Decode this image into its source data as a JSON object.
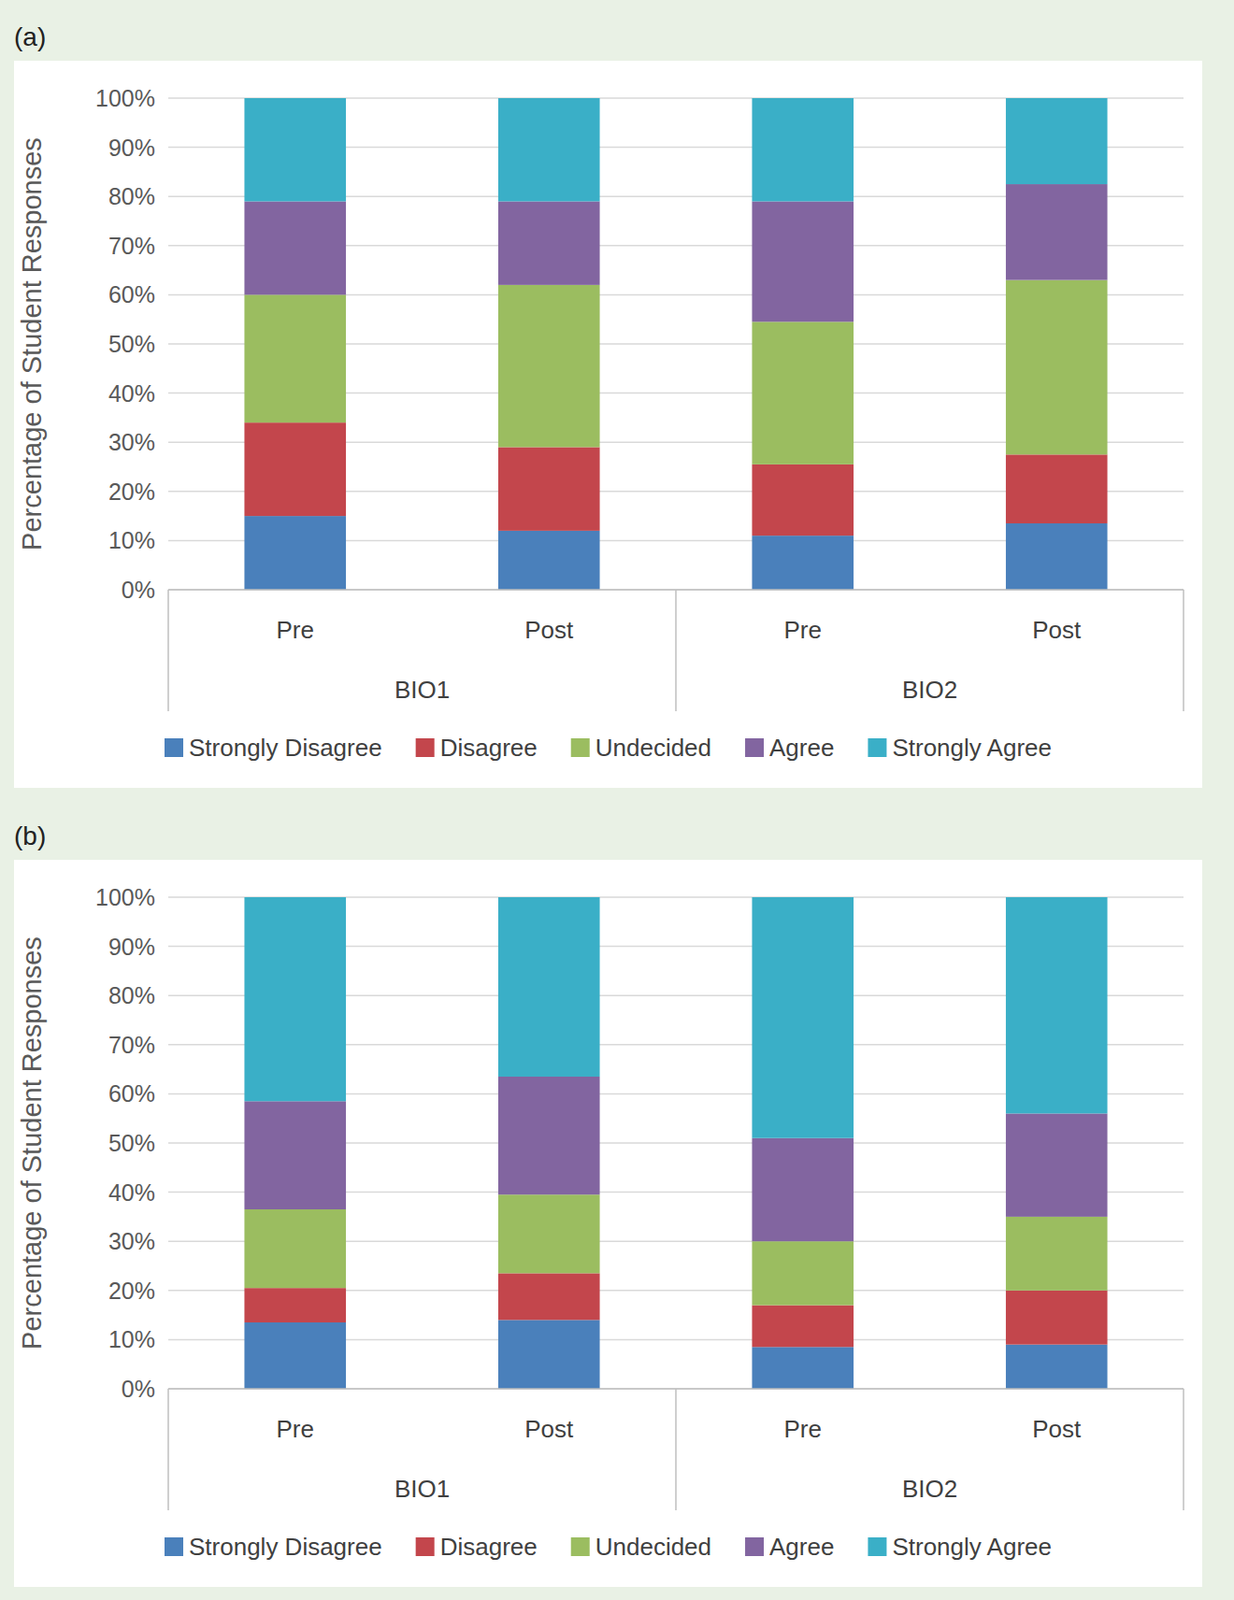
{
  "chart_data": [
    {
      "type": "bar",
      "stacked": true,
      "panel_label": "(a)",
      "y_label": "Percentage of Student Responses",
      "categories": [
        "Pre",
        "Post",
        "Pre",
        "Post"
      ],
      "groups": [
        {
          "name": "BIO1",
          "count": 2
        },
        {
          "name": "BIO2",
          "count": 2
        }
      ],
      "ylim": [
        0,
        100
      ],
      "yticks": [
        {
          "value": 0,
          "label": "0%"
        },
        {
          "value": 10,
          "label": "10%"
        },
        {
          "value": 20,
          "label": "20%"
        },
        {
          "value": 30,
          "label": "30%"
        },
        {
          "value": 40,
          "label": "40%"
        },
        {
          "value": 50,
          "label": "50%"
        },
        {
          "value": 60,
          "label": "60%"
        },
        {
          "value": 70,
          "label": "70%"
        },
        {
          "value": 80,
          "label": "80%"
        },
        {
          "value": 90,
          "label": "90%"
        },
        {
          "value": 100,
          "label": "100%"
        }
      ],
      "grid": true,
      "legend": "bottom",
      "series": [
        {
          "name": "Strongly Disagree",
          "color": "#4a80bb",
          "values": [
            15,
            12,
            11,
            13.5
          ]
        },
        {
          "name": "Disagree",
          "color": "#c3464c",
          "values": [
            19,
            17,
            14.5,
            14
          ]
        },
        {
          "name": "Undecided",
          "color": "#9bbd60",
          "values": [
            26,
            33,
            29,
            35.5
          ]
        },
        {
          "name": "Agree",
          "color": "#8265a0",
          "values": [
            19,
            17,
            24.5,
            19.5
          ]
        },
        {
          "name": "Strongly Agree",
          "color": "#3aafc7",
          "values": [
            21,
            21,
            21,
            17.5
          ]
        }
      ]
    },
    {
      "type": "bar",
      "stacked": true,
      "panel_label": "(b)",
      "y_label": "Percentage of Student Responses",
      "categories": [
        "Pre",
        "Post",
        "Pre",
        "Post"
      ],
      "groups": [
        {
          "name": "BIO1",
          "count": 2
        },
        {
          "name": "BIO2",
          "count": 2
        }
      ],
      "ylim": [
        0,
        100
      ],
      "yticks": [
        {
          "value": 0,
          "label": "0%"
        },
        {
          "value": 10,
          "label": "10%"
        },
        {
          "value": 20,
          "label": "20%"
        },
        {
          "value": 30,
          "label": "30%"
        },
        {
          "value": 40,
          "label": "40%"
        },
        {
          "value": 50,
          "label": "50%"
        },
        {
          "value": 60,
          "label": "60%"
        },
        {
          "value": 70,
          "label": "70%"
        },
        {
          "value": 80,
          "label": "80%"
        },
        {
          "value": 90,
          "label": "90%"
        },
        {
          "value": 100,
          "label": "100%"
        }
      ],
      "grid": true,
      "legend": "bottom",
      "series": [
        {
          "name": "Strongly Disagree",
          "color": "#4a80bb",
          "values": [
            13.5,
            14,
            8.5,
            9
          ]
        },
        {
          "name": "Disagree",
          "color": "#c3464c",
          "values": [
            7,
            9.5,
            8.5,
            11
          ]
        },
        {
          "name": "Undecided",
          "color": "#9bbd60",
          "values": [
            16,
            16,
            13,
            15
          ]
        },
        {
          "name": "Agree",
          "color": "#8265a0",
          "values": [
            22,
            24,
            21,
            21
          ]
        },
        {
          "name": "Strongly Agree",
          "color": "#3aafc7",
          "values": [
            41.5,
            36.5,
            49,
            44
          ]
        }
      ]
    }
  ]
}
